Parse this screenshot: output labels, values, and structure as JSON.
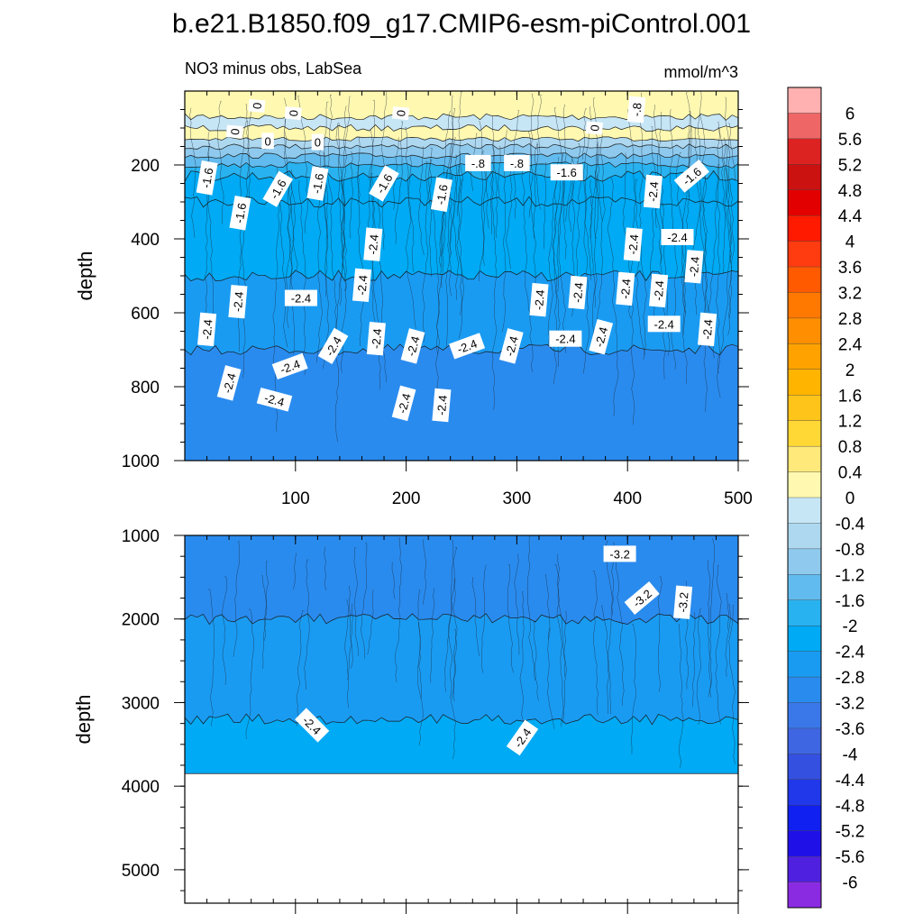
{
  "chart_data": {
    "type": "heatmap",
    "title": "b.e21.B1850.f09_g17.CMIP6-esm-piControl.001",
    "panels": [
      {
        "id": "upper",
        "left_label": "NO3 minus obs, LabSea",
        "right_label": "mmol/m^3",
        "ylabel": "depth",
        "xlim": [
          0,
          500
        ],
        "ylim": [
          0,
          1000
        ],
        "x_ticks": [
          100,
          200,
          300,
          400,
          500
        ],
        "x_tick_labels": [
          "100",
          "200",
          "300",
          "400",
          "500"
        ],
        "y_ticks": [
          200,
          400,
          600,
          800,
          1000
        ],
        "y_tick_labels": [
          "200",
          "400",
          "600",
          "800",
          "1000"
        ],
        "bands": [
          {
            "y0": 0,
            "y1": 70,
            "value": 0.4
          },
          {
            "y0": 70,
            "y1": 100,
            "value": -0.2
          },
          {
            "y0": 100,
            "y1": 130,
            "value": 0.4
          },
          {
            "y0": 130,
            "y1": 150,
            "value": -0.4
          },
          {
            "y0": 150,
            "y1": 175,
            "value": -0.8
          },
          {
            "y0": 175,
            "y1": 200,
            "value": -1.2
          },
          {
            "y0": 200,
            "y1": 230,
            "value": -1.6
          },
          {
            "y0": 230,
            "y1": 300,
            "value": -2.0
          },
          {
            "y0": 300,
            "y1": 500,
            "value": -2.2
          },
          {
            "y0": 500,
            "y1": 700,
            "value": -2.6
          },
          {
            "y0": 700,
            "y1": 1000,
            "value": -3.0
          }
        ],
        "contour_labels": [
          {
            "text": "0",
            "x": 65,
            "y": 40,
            "angle": -85
          },
          {
            "text": "0",
            "x": 98,
            "y": 60,
            "angle": -85
          },
          {
            "text": "0",
            "x": 195,
            "y": 60,
            "angle": -85
          },
          {
            "text": "-.8",
            "x": 408,
            "y": 50,
            "angle": -85
          },
          {
            "text": "0",
            "x": 45,
            "y": 110,
            "angle": -85
          },
          {
            "text": "0",
            "x": 75,
            "y": 135,
            "angle": 0
          },
          {
            "text": "0",
            "x": 120,
            "y": 138,
            "angle": 0
          },
          {
            "text": "0",
            "x": 370,
            "y": 100,
            "angle": -85
          },
          {
            "text": "-1.6",
            "x": 20,
            "y": 235,
            "angle": -80
          },
          {
            "text": "-1.6",
            "x": 84,
            "y": 265,
            "angle": -60
          },
          {
            "text": "-1.6",
            "x": 120,
            "y": 250,
            "angle": -80
          },
          {
            "text": "-1.6",
            "x": 180,
            "y": 250,
            "angle": -60
          },
          {
            "text": "-1.6",
            "x": 232,
            "y": 280,
            "angle": -80
          },
          {
            "text": "-1.6",
            "x": 50,
            "y": 330,
            "angle": -80
          },
          {
            "text": "-.8",
            "x": 265,
            "y": 195,
            "angle": 0
          },
          {
            "text": "-.8",
            "x": 300,
            "y": 195,
            "angle": 0
          },
          {
            "text": "-1.6",
            "x": 345,
            "y": 220,
            "angle": 0
          },
          {
            "text": "-2.4",
            "x": 423,
            "y": 272,
            "angle": -85
          },
          {
            "text": "-1.6",
            "x": 458,
            "y": 230,
            "angle": -40
          },
          {
            "text": "-2.4",
            "x": 170,
            "y": 415,
            "angle": -85
          },
          {
            "text": "-2.4",
            "x": 405,
            "y": 415,
            "angle": -85
          },
          {
            "text": "-2.4",
            "x": 445,
            "y": 395,
            "angle": 0
          },
          {
            "text": "-2.4",
            "x": 460,
            "y": 475,
            "angle": -85
          },
          {
            "text": "-2.4",
            "x": 160,
            "y": 525,
            "angle": -85
          },
          {
            "text": "-2.4",
            "x": 105,
            "y": 560,
            "angle": 0
          },
          {
            "text": "-2.4",
            "x": 48,
            "y": 570,
            "angle": -85
          },
          {
            "text": "-2.4",
            "x": 320,
            "y": 565,
            "angle": -85
          },
          {
            "text": "-2.4",
            "x": 355,
            "y": 545,
            "angle": -85
          },
          {
            "text": "-2.4",
            "x": 398,
            "y": 535,
            "angle": -85
          },
          {
            "text": "-2.4",
            "x": 428,
            "y": 540,
            "angle": -85
          },
          {
            "text": "-2.4",
            "x": 20,
            "y": 645,
            "angle": -85
          },
          {
            "text": "-2.4",
            "x": 433,
            "y": 630,
            "angle": 0
          },
          {
            "text": "-2.4",
            "x": 472,
            "y": 645,
            "angle": -85
          },
          {
            "text": "-2.4",
            "x": 134,
            "y": 690,
            "angle": -60
          },
          {
            "text": "-2.4",
            "x": 173,
            "y": 670,
            "angle": -85
          },
          {
            "text": "-2.4",
            "x": 206,
            "y": 690,
            "angle": -75
          },
          {
            "text": "-2.4",
            "x": 255,
            "y": 690,
            "angle": -20
          },
          {
            "text": "-2.4",
            "x": 295,
            "y": 690,
            "angle": -75
          },
          {
            "text": "-2.4",
            "x": 344,
            "y": 670,
            "angle": 0
          },
          {
            "text": "-2.4",
            "x": 376,
            "y": 665,
            "angle": -75
          },
          {
            "text": "-2.4",
            "x": 95,
            "y": 745,
            "angle": -20
          },
          {
            "text": "-2.4",
            "x": 40,
            "y": 790,
            "angle": -75
          },
          {
            "text": "-2.4",
            "x": 81,
            "y": 835,
            "angle": 15
          },
          {
            "text": "-2.4",
            "x": 198,
            "y": 845,
            "angle": -75
          },
          {
            "text": "-2.4",
            "x": 232,
            "y": 850,
            "angle": -85
          }
        ]
      },
      {
        "id": "lower",
        "left_label": "",
        "right_label": "",
        "ylabel": "depth",
        "xlim": [
          0,
          500
        ],
        "ylim": [
          1000,
          5400
        ],
        "x_ticks": [
          100,
          200,
          300,
          400,
          500
        ],
        "x_tick_labels": [],
        "y_ticks": [
          1000,
          2000,
          3000,
          4000,
          5000
        ],
        "y_tick_labels": [
          "1000",
          "2000",
          "3000",
          "4000",
          "5000"
        ],
        "no_data_below": 3850,
        "bands": [
          {
            "y0": 1000,
            "y1": 2000,
            "value": -3.0
          },
          {
            "y0": 2000,
            "y1": 3200,
            "value": -2.6
          },
          {
            "y0": 3200,
            "y1": 3850,
            "value": -2.2
          }
        ],
        "contour_labels": [
          {
            "text": "-3.2",
            "x": 393,
            "y": 1220,
            "angle": 0
          },
          {
            "text": "-3.2",
            "x": 413,
            "y": 1750,
            "angle": -40
          },
          {
            "text": "-3.2",
            "x": 450,
            "y": 1800,
            "angle": -85
          },
          {
            "text": "-2.4",
            "x": 115,
            "y": 3270,
            "angle": 45
          },
          {
            "text": "-2.4",
            "x": 305,
            "y": 3420,
            "angle": -55
          }
        ]
      }
    ],
    "colorbar": {
      "levels": [
        6,
        5.6,
        5.2,
        4.8,
        4.4,
        4,
        3.6,
        3.2,
        2.8,
        2.4,
        2,
        1.6,
        1.2,
        0.8,
        0.4,
        0,
        -0.4,
        -0.8,
        -1.2,
        -1.6,
        -2,
        -2.4,
        -2.8,
        -3.2,
        -3.6,
        -4,
        -4.4,
        -4.8,
        -5.2,
        -5.6,
        -6
      ],
      "labels": [
        "6",
        "5.6",
        "5.2",
        "4.8",
        "4.4",
        "4",
        "3.6",
        "3.2",
        "2.8",
        "2.4",
        "2",
        "1.6",
        "1.2",
        "0.8",
        "0.4",
        "0",
        "-0.4",
        "-0.8",
        "-1.2",
        "-1.6",
        "-2",
        "-2.4",
        "-2.8",
        "-3.2",
        "-3.6",
        "-4",
        "-4.4",
        "-4.8",
        "-5.2",
        "-5.6",
        "-6"
      ],
      "colors": [
        "#ffb0b0",
        "#ee6666",
        "#dd2222",
        "#cc1111",
        "#e30000",
        "#ff1a00",
        "#ff3b10",
        "#ff5a00",
        "#ff7800",
        "#ff8f00",
        "#ffa200",
        "#ffb400",
        "#ffc41a",
        "#ffd835",
        "#ffe97a",
        "#fff8b0",
        "#c7e6f5",
        "#aed8f0",
        "#8fcaee",
        "#62bbee",
        "#28b2f0",
        "#00aaf4",
        "#1a9bf2",
        "#2a8bee",
        "#3a78ea",
        "#3f66e2",
        "#3350e0",
        "#2038ea",
        "#1020f0",
        "#2010e8",
        "#5020e0",
        "#8a2be2"
      ]
    }
  }
}
